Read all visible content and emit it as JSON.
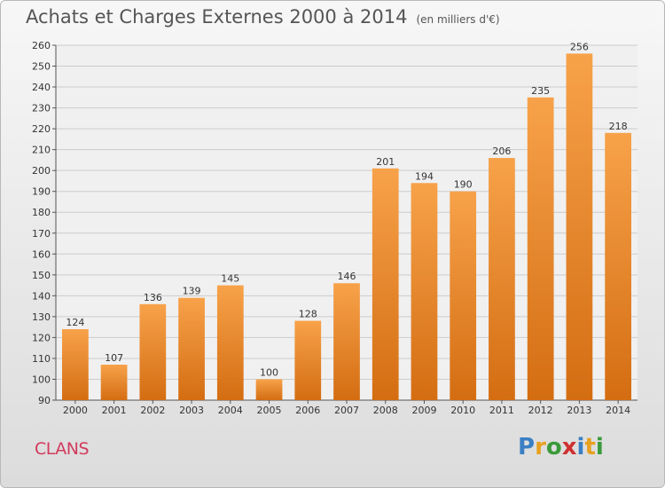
{
  "title": "Achats et Charges Externes 2000 à 2014",
  "unit": "(en milliers d'€)",
  "commune": "CLANS",
  "logo": {
    "letters": [
      {
        "char": "P",
        "color": "#3a7fc4"
      },
      {
        "char": "r",
        "color": "#e8a020"
      },
      {
        "char": "o",
        "color": "#3a9a3a"
      },
      {
        "char": "x",
        "color": "#d03030"
      },
      {
        "char": "i",
        "color": "#3a7fc4"
      },
      {
        "char": "t",
        "color": "#e8a020"
      },
      {
        "char": "i",
        "color": "#3a9a3a"
      }
    ]
  },
  "colors": {
    "bar_top": "#f7a24a",
    "bar_bottom": "#d46d12",
    "grid": "#cccccc",
    "plot_bg": "#f0f0f0"
  },
  "chart_data": {
    "type": "bar",
    "categories": [
      "2000",
      "2001",
      "2002",
      "2003",
      "2004",
      "2005",
      "2006",
      "2007",
      "2008",
      "2009",
      "2010",
      "2011",
      "2012",
      "2013",
      "2014"
    ],
    "values": [
      124,
      107,
      136,
      139,
      145,
      100,
      128,
      146,
      201,
      194,
      190,
      206,
      235,
      256,
      218
    ],
    "title": "Achats et Charges Externes 2000 à 2014",
    "ylim": [
      90,
      260
    ],
    "yticks": [
      90,
      100,
      110,
      120,
      130,
      140,
      150,
      160,
      170,
      180,
      190,
      200,
      210,
      220,
      230,
      240,
      250,
      260
    ],
    "grid": true,
    "data_labels": true
  }
}
